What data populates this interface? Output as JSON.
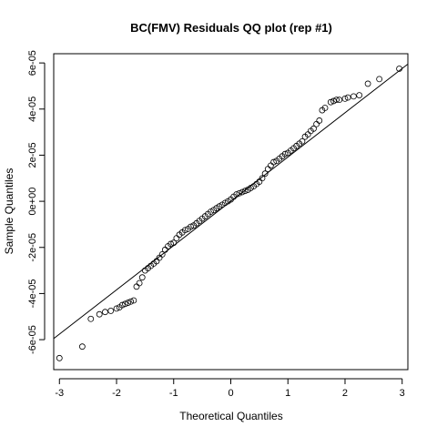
{
  "chart_data": {
    "type": "scatter",
    "title": "BC(FMV) Residuals QQ plot (rep #1)",
    "xlabel": "Theoretical Quantiles",
    "ylabel": "Sample Quantiles",
    "xlim": [
      -3.1,
      3.1
    ],
    "ylim": [
      -7.3e-05,
      6.4e-05
    ],
    "x_ticks": [
      {
        "value": -3,
        "label": "-3"
      },
      {
        "value": -2,
        "label": "-2"
      },
      {
        "value": -1,
        "label": "-1"
      },
      {
        "value": 0,
        "label": "0"
      },
      {
        "value": 1,
        "label": "1"
      },
      {
        "value": 2,
        "label": "2"
      },
      {
        "value": 3,
        "label": "3"
      }
    ],
    "y_ticks": [
      {
        "value": -6e-05,
        "label": "-6e-05"
      },
      {
        "value": -4e-05,
        "label": "-4e-05"
      },
      {
        "value": -2e-05,
        "label": "-2e-05"
      },
      {
        "value": 0,
        "label": "0e+00"
      },
      {
        "value": 2e-05,
        "label": "2e-05"
      },
      {
        "value": 4e-05,
        "label": "4e-05"
      },
      {
        "value": 6e-05,
        "label": "6e-05"
      }
    ],
    "reference_line": {
      "intercept": 0,
      "slope": 1.92e-05
    },
    "marker": "open-circle",
    "grid": false,
    "points": [
      [
        -3.0,
        -6.8e-05
      ],
      [
        -2.6,
        -6.3e-05
      ],
      [
        -2.45,
        -5.1e-05
      ],
      [
        -2.3,
        -4.9e-05
      ],
      [
        -2.2,
        -4.8e-05
      ],
      [
        -2.1,
        -4.75e-05
      ],
      [
        -2.0,
        -4.65e-05
      ],
      [
        -1.95,
        -4.6e-05
      ],
      [
        -1.9,
        -4.5e-05
      ],
      [
        -1.85,
        -4.45e-05
      ],
      [
        -1.8,
        -4.4e-05
      ],
      [
        -1.75,
        -4.35e-05
      ],
      [
        -1.7,
        -4.3e-05
      ],
      [
        -1.65,
        -3.7e-05
      ],
      [
        -1.6,
        -3.55e-05
      ],
      [
        -1.55,
        -3.3e-05
      ],
      [
        -1.5,
        -3e-05
      ],
      [
        -1.45,
        -2.9e-05
      ],
      [
        -1.4,
        -2.8e-05
      ],
      [
        -1.35,
        -2.7e-05
      ],
      [
        -1.3,
        -2.6e-05
      ],
      [
        -1.25,
        -2.45e-05
      ],
      [
        -1.2,
        -2.3e-05
      ],
      [
        -1.15,
        -2.1e-05
      ],
      [
        -1.1,
        -1.95e-05
      ],
      [
        -1.05,
        -1.85e-05
      ],
      [
        -1.0,
        -1.8e-05
      ],
      [
        -0.95,
        -1.6e-05
      ],
      [
        -0.9,
        -1.45e-05
      ],
      [
        -0.85,
        -1.35e-05
      ],
      [
        -0.8,
        -1.25e-05
      ],
      [
        -0.75,
        -1.2e-05
      ],
      [
        -0.7,
        -1.1e-05
      ],
      [
        -0.65,
        -1.05e-05
      ],
      [
        -0.6,
        -9.5e-06
      ],
      [
        -0.55,
        -8.5e-06
      ],
      [
        -0.5,
        -7.5e-06
      ],
      [
        -0.45,
        -6.5e-06
      ],
      [
        -0.4,
        -5.5e-06
      ],
      [
        -0.35,
        -4.5e-06
      ],
      [
        -0.3,
        -3.8e-06
      ],
      [
        -0.25,
        -3e-06
      ],
      [
        -0.2,
        -2.2e-06
      ],
      [
        -0.15,
        -1.5e-06
      ],
      [
        -0.1,
        -7e-07
      ],
      [
        -0.05,
        0.0
      ],
      [
        0.0,
        8e-07
      ],
      [
        0.05,
        2e-06
      ],
      [
        0.1,
        3e-06
      ],
      [
        0.15,
        3.5e-06
      ],
      [
        0.2,
        4e-06
      ],
      [
        0.25,
        4.5e-06
      ],
      [
        0.3,
        5e-06
      ],
      [
        0.35,
        5.8e-06
      ],
      [
        0.4,
        6.5e-06
      ],
      [
        0.45,
        7.5e-06
      ],
      [
        0.5,
        8.5e-06
      ],
      [
        0.55,
        1e-05
      ],
      [
        0.6,
        1.2e-05
      ],
      [
        0.65,
        1.4e-05
      ],
      [
        0.7,
        1.55e-05
      ],
      [
        0.75,
        1.7e-05
      ],
      [
        0.8,
        1.75e-05
      ],
      [
        0.85,
        1.85e-05
      ],
      [
        0.9,
        1.95e-05
      ],
      [
        0.95,
        2.05e-05
      ],
      [
        1.0,
        2.1e-05
      ],
      [
        1.05,
        2.2e-05
      ],
      [
        1.1,
        2.3e-05
      ],
      [
        1.15,
        2.4e-05
      ],
      [
        1.2,
        2.5e-05
      ],
      [
        1.25,
        2.6e-05
      ],
      [
        1.3,
        2.8e-05
      ],
      [
        1.35,
        2.9e-05
      ],
      [
        1.4,
        3.05e-05
      ],
      [
        1.45,
        3.15e-05
      ],
      [
        1.5,
        3.35e-05
      ],
      [
        1.55,
        3.5e-05
      ],
      [
        1.6,
        3.95e-05
      ],
      [
        1.65,
        4.05e-05
      ],
      [
        1.75,
        4.3e-05
      ],
      [
        1.8,
        4.35e-05
      ],
      [
        1.85,
        4.4e-05
      ],
      [
        1.9,
        4.4e-05
      ],
      [
        2.0,
        4.45e-05
      ],
      [
        2.05,
        4.5e-05
      ],
      [
        2.15,
        4.55e-05
      ],
      [
        2.25,
        4.6e-05
      ],
      [
        2.4,
        5.1e-05
      ],
      [
        2.6,
        5.3e-05
      ],
      [
        2.95,
        5.75e-05
      ]
    ]
  }
}
